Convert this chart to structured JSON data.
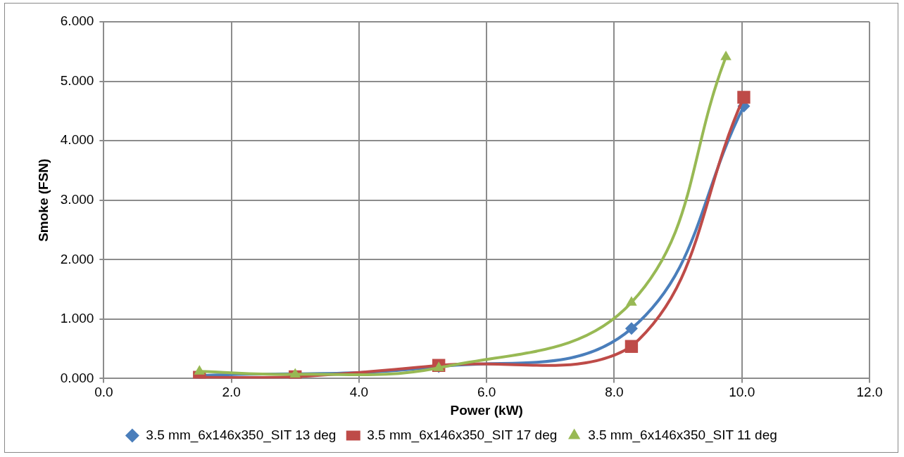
{
  "chart_data": {
    "type": "line",
    "xlabel": "Power (kW)",
    "ylabel": "Smoke (FSN)",
    "xlim": [
      0,
      12
    ],
    "xticks": [
      {
        "value": 0,
        "label": "0.0"
      },
      {
        "value": 2,
        "label": "2.0"
      },
      {
        "value": 4,
        "label": "4.0"
      },
      {
        "value": 6,
        "label": "6.0"
      },
      {
        "value": 8,
        "label": "8.0"
      },
      {
        "value": 10,
        "label": "10.0"
      },
      {
        "value": 12,
        "label": "12.0"
      }
    ],
    "ylim": [
      0,
      6
    ],
    "yticks": [
      {
        "value": 0,
        "label": "0.000"
      },
      {
        "value": 1,
        "label": "1.000"
      },
      {
        "value": 2,
        "label": "2.000"
      },
      {
        "value": 3,
        "label": "3.000"
      },
      {
        "value": 4,
        "label": "4.000"
      },
      {
        "value": 5,
        "label": "5.000"
      },
      {
        "value": 6,
        "label": "6.000"
      }
    ],
    "grid": true,
    "legend": "bottom",
    "series": [
      {
        "name": "3.5 mm_6x146x350_SIT 13 deg",
        "color": "#4a7ebb",
        "marker": "diamond",
        "x": [
          1.5,
          3.0,
          5.25,
          8.27,
          10.03
        ],
        "values": [
          0.05,
          null,
          0.2,
          0.84,
          4.58
        ]
      },
      {
        "name": "3.5 mm_6x146x350_SIT 17 deg",
        "color": "#be4b48",
        "marker": "square",
        "x": [
          1.5,
          3.0,
          5.25,
          8.27,
          10.03
        ],
        "values": [
          0.02,
          0.03,
          0.22,
          0.54,
          4.73
        ]
      },
      {
        "name": "3.5 mm_6x146x350_SIT 11 deg",
        "color": "#98b954",
        "marker": "triangle",
        "x": [
          1.5,
          3.0,
          5.25,
          8.27,
          9.75
        ],
        "values": [
          0.12,
          0.07,
          0.18,
          1.28,
          5.41
        ]
      }
    ]
  }
}
